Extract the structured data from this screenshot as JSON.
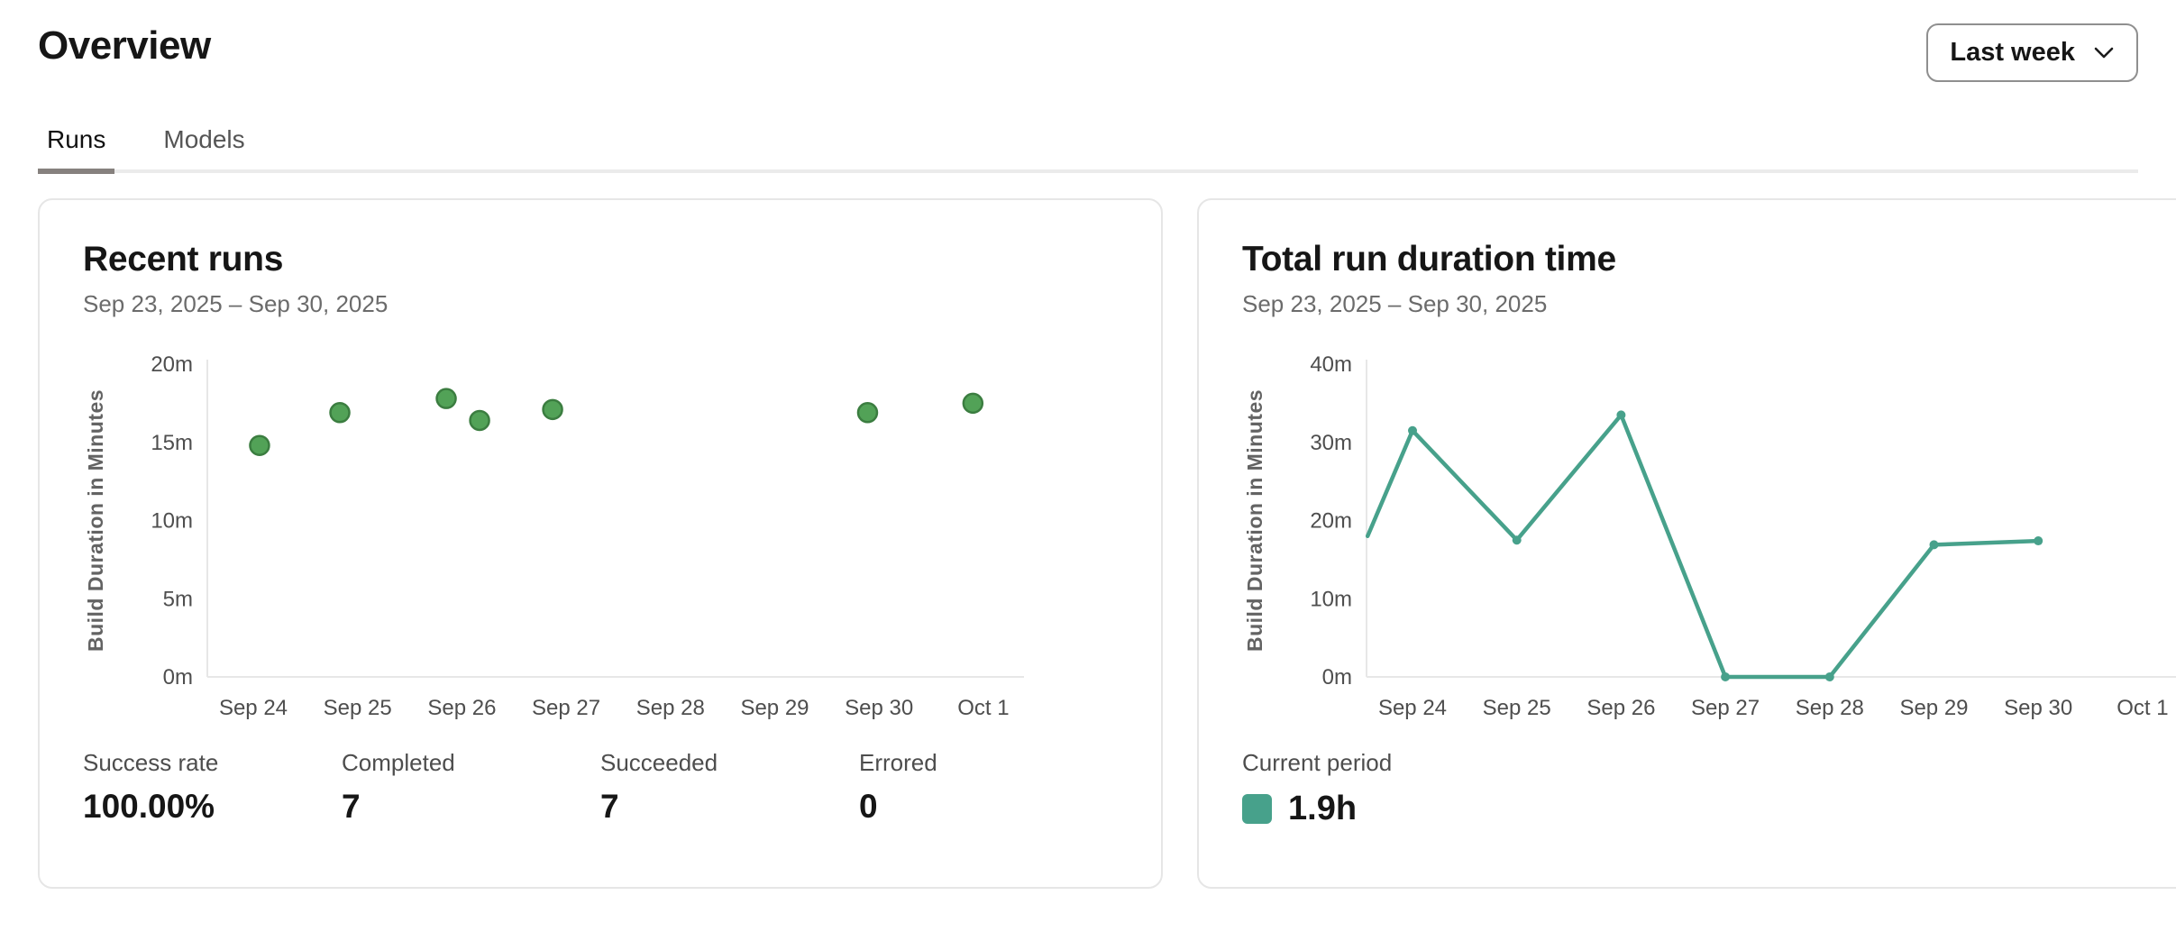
{
  "page": {
    "title": "Overview"
  },
  "header": {
    "period_selector": {
      "label": "Last week",
      "icon": "chevron-down"
    }
  },
  "tabs": [
    {
      "label": "Runs",
      "active": true
    },
    {
      "label": "Models",
      "active": false
    }
  ],
  "cards": {
    "recent_runs": {
      "title": "Recent runs",
      "date_range": "Sep 23, 2025 – Sep 30, 2025",
      "stats": [
        {
          "label": "Success rate",
          "value": "100.00%"
        },
        {
          "label": "Completed",
          "value": "7"
        },
        {
          "label": "Succeeded",
          "value": "7"
        },
        {
          "label": "Errored",
          "value": "0"
        }
      ]
    },
    "total_run_duration": {
      "title": "Total run duration time",
      "date_range": "Sep 23, 2025 – Sep 30, 2025",
      "legend": {
        "label": "Current period",
        "value": "1.9h",
        "color": "#47a18b"
      }
    }
  },
  "chart_data": [
    {
      "type": "scatter",
      "card": "recent_runs",
      "title": "Recent runs",
      "ylabel": "Build Duration in Minutes",
      "x_ticks": [
        "Sep 24",
        "Sep 25",
        "Sep 26",
        "Sep 27",
        "Sep 28",
        "Sep 29",
        "Sep 30",
        "Oct 1"
      ],
      "y_ticks": [
        "0m",
        "5m",
        "10m",
        "15m",
        "20m"
      ],
      "ylim": [
        0,
        20
      ],
      "x_unit": "days offset from Sep 24 tick",
      "point_color": "#52a257",
      "point_stroke": "#3b7d40",
      "points": [
        {
          "x": 0.06,
          "y": 14.8
        },
        {
          "x": 0.83,
          "y": 16.9
        },
        {
          "x": 1.85,
          "y": 17.8
        },
        {
          "x": 2.17,
          "y": 16.4
        },
        {
          "x": 2.87,
          "y": 17.1
        },
        {
          "x": 5.89,
          "y": 16.9
        },
        {
          "x": 6.9,
          "y": 17.5
        }
      ],
      "grid": false
    },
    {
      "type": "line",
      "card": "total_run_duration",
      "title": "Total run duration time",
      "ylabel": "Build Duration in Minutes",
      "x_ticks": [
        "Sep 24",
        "Sep 25",
        "Sep 26",
        "Sep 27",
        "Sep 28",
        "Sep 29",
        "Sep 30",
        "Oct 1"
      ],
      "y_ticks": [
        "0m",
        "10m",
        "20m",
        "30m",
        "40m"
      ],
      "ylim": [
        0,
        40
      ],
      "x_unit": "days offset from Sep 24 tick",
      "line_color": "#47a18b",
      "points": [
        {
          "x": -0.43,
          "y": 18.0
        },
        {
          "x": 0,
          "y": 31.5
        },
        {
          "x": 1,
          "y": 17.5
        },
        {
          "x": 2,
          "y": 33.5
        },
        {
          "x": 3,
          "y": 0
        },
        {
          "x": 4,
          "y": 0
        },
        {
          "x": 5,
          "y": 16.9
        },
        {
          "x": 6,
          "y": 17.4
        }
      ],
      "grid": false
    }
  ]
}
